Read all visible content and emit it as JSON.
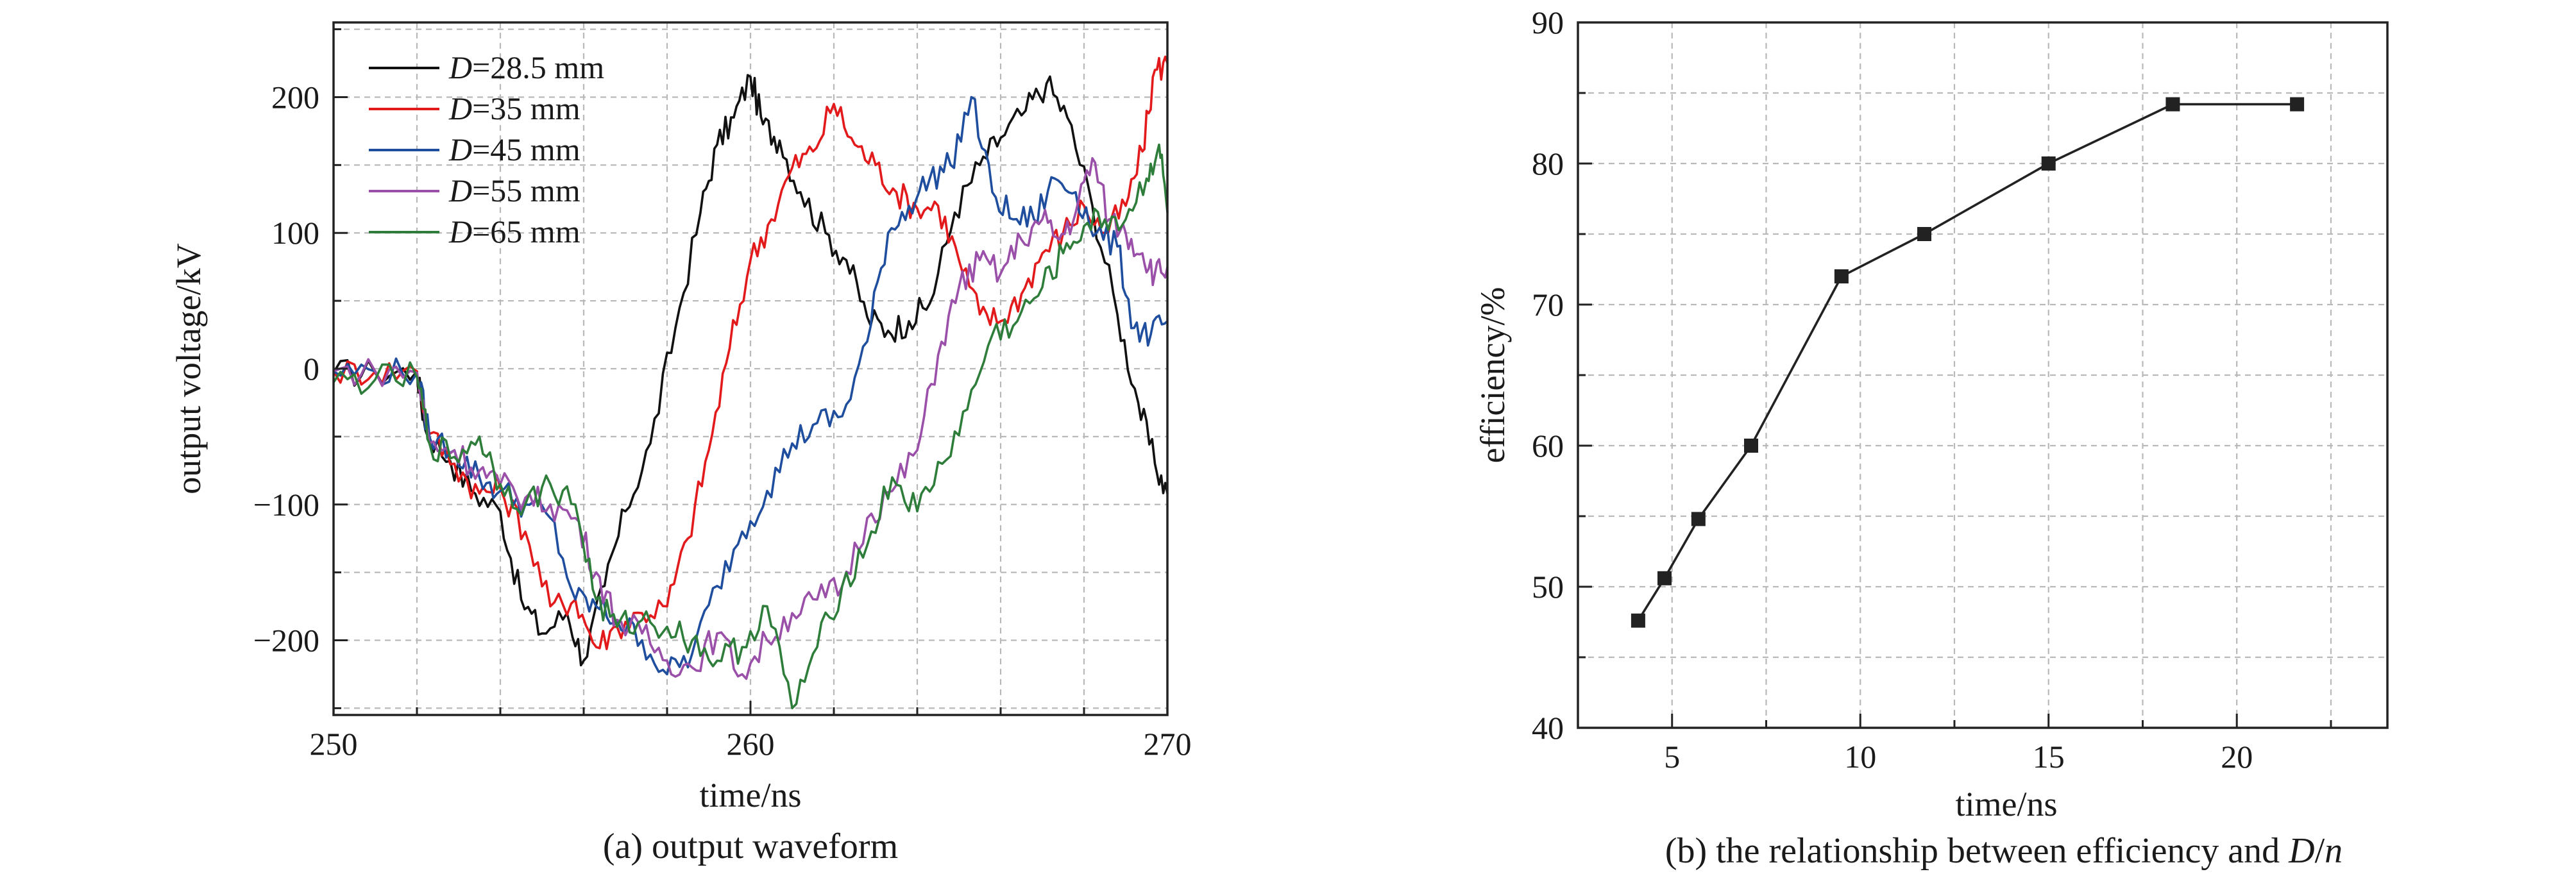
{
  "figure": {
    "captions": {
      "a": "(a) output waveform",
      "b_prefix": "(b) the relationship between efficiency and ",
      "b_italic_1": "D",
      "b_slash": "/",
      "b_italic_2": "n"
    }
  },
  "chart_data": [
    {
      "id": "a",
      "type": "line",
      "title": "",
      "xlabel": "time/ns",
      "ylabel": "output voltage/kV",
      "xlim": [
        250,
        270
      ],
      "ylim": [
        -255,
        255
      ],
      "x_ticks": [
        250,
        260,
        270
      ],
      "x_minor_ticks": [
        252,
        254,
        256,
        258,
        262,
        264,
        266,
        268
      ],
      "y_ticks": [
        -200,
        -100,
        0,
        100,
        200
      ],
      "y_minor_ticks": [
        -150,
        -50,
        50,
        150,
        250,
        -250
      ],
      "grid": true,
      "legend_position": "top-left",
      "series": [
        {
          "name_var": "D",
          "name_rest": "=28.5 mm",
          "color": "#111111",
          "x": [
            250,
            251,
            252,
            252.2,
            252.8,
            253.4,
            254,
            254.5,
            255,
            255.6,
            256,
            256.5,
            257,
            257.6,
            258.2,
            258.8,
            259.2,
            259.6,
            260,
            260.3,
            260.7,
            261.2,
            261.8,
            262.3,
            262.8,
            263.3,
            263.8,
            264.3,
            264.9,
            265.5,
            266,
            266.6,
            267.1,
            267.6,
            268.2,
            268.8,
            269.3,
            269.7,
            270
          ],
          "y": [
            -3,
            -3,
            -2,
            -45,
            -68,
            -92,
            -105,
            -170,
            -195,
            -180,
            -215,
            -160,
            -105,
            -55,
            30,
            115,
            165,
            185,
            215,
            180,
            168,
            130,
            100,
            80,
            38,
            28,
            35,
            48,
            115,
            150,
            170,
            190,
            210,
            185,
            120,
            40,
            -25,
            -70,
            -92
          ]
        },
        {
          "name_var": "D",
          "name_rest": "=35 mm",
          "color": "#e31a1c",
          "x": [
            250,
            251,
            252,
            252.3,
            252.9,
            253.5,
            254,
            254.6,
            255.2,
            255.8,
            256.3,
            256.8,
            257.4,
            258,
            258.5,
            259,
            259.5,
            260,
            260.5,
            261,
            261.5,
            262,
            262.5,
            263,
            263.5,
            264,
            264.5,
            265,
            265.5,
            266,
            266.5,
            267,
            267.5,
            268,
            268.5,
            269,
            269.4,
            269.7,
            270
          ],
          "y": [
            -2,
            -2,
            -2,
            -48,
            -70,
            -92,
            -88,
            -120,
            -175,
            -170,
            -205,
            -190,
            -180,
            -175,
            -125,
            -60,
            15,
            80,
            110,
            148,
            160,
            195,
            165,
            150,
            130,
            118,
            120,
            80,
            40,
            35,
            55,
            85,
            100,
            120,
            100,
            120,
            160,
            220,
            225
          ]
        },
        {
          "name_var": "D",
          "name_rest": "=45 mm",
          "color": "#1f4e9e",
          "x": [
            250,
            251,
            252,
            252.3,
            252.9,
            253.5,
            254,
            254.6,
            255.2,
            255.8,
            256.3,
            256.8,
            257.4,
            258,
            258.6,
            259.2,
            259.8,
            260.4,
            261,
            261.6,
            262.2,
            262.8,
            263.3,
            263.8,
            264.3,
            264.8,
            265.3,
            265.8,
            266.3,
            266.8,
            267.3,
            267.8,
            268.3,
            268.8,
            269.2,
            269.6,
            270
          ],
          "y": [
            -2,
            -2,
            -3,
            -50,
            -60,
            -80,
            -90,
            -100,
            -110,
            -170,
            -175,
            -185,
            -200,
            -225,
            -210,
            -160,
            -120,
            -90,
            -55,
            -40,
            -35,
            20,
            100,
            120,
            140,
            150,
            200,
            130,
            110,
            110,
            140,
            130,
            100,
            90,
            30,
            25,
            35
          ]
        },
        {
          "name_var": "D",
          "name_rest": "=55 mm",
          "color": "#9a4fa8",
          "x": [
            250,
            251,
            252,
            252.3,
            252.9,
            253.5,
            254,
            254.6,
            255.2,
            255.8,
            256.3,
            256.8,
            257.4,
            258,
            258.6,
            259.2,
            259.8,
            260.4,
            261,
            261.6,
            262.2,
            262.8,
            263.4,
            264,
            264.5,
            265,
            265.5,
            266,
            266.5,
            267,
            267.4,
            267.8,
            268.2,
            268.6,
            269,
            269.4,
            269.7,
            270
          ],
          "y": [
            -2,
            -2,
            -3,
            -55,
            -60,
            -75,
            -85,
            -95,
            -100,
            -110,
            -150,
            -185,
            -195,
            -215,
            -220,
            -195,
            -225,
            -200,
            -180,
            -170,
            -160,
            -110,
            -90,
            -60,
            10,
            60,
            80,
            70,
            95,
            110,
            95,
            115,
            155,
            110,
            100,
            85,
            70,
            75
          ]
        },
        {
          "name_var": "D",
          "name_rest": "=65 mm",
          "color": "#2e7d3a",
          "x": [
            250,
            251,
            252,
            252.3,
            252.9,
            253.5,
            254,
            254.6,
            255.2,
            255.8,
            256.3,
            256.8,
            257.4,
            258,
            258.6,
            259.2,
            259.8,
            260.4,
            261,
            261.6,
            262.2,
            262.8,
            263.4,
            264,
            264.6,
            265.2,
            265.8,
            266.4,
            267,
            267.5,
            268,
            268.5,
            269,
            269.5,
            269.8,
            270
          ],
          "y": [
            -10,
            -8,
            -6,
            -55,
            -65,
            -50,
            -85,
            -100,
            -85,
            -100,
            -170,
            -190,
            -185,
            -190,
            -200,
            -215,
            -205,
            -175,
            -250,
            -205,
            -160,
            -130,
            -80,
            -105,
            -70,
            -30,
            25,
            35,
            60,
            85,
            105,
            110,
            110,
            140,
            165,
            115
          ]
        }
      ]
    },
    {
      "id": "b",
      "type": "line",
      "title": "",
      "xlabel": "time/ns",
      "ylabel": "efficiency/%",
      "xlim": [
        2.5,
        24
      ],
      "ylim": [
        40,
        90
      ],
      "x_ticks": [
        5,
        10,
        15,
        20
      ],
      "x_minor_ticks": [
        2.5,
        7.5,
        12.5,
        17.5,
        22.5
      ],
      "y_ticks": [
        40,
        50,
        60,
        70,
        80,
        90
      ],
      "y_minor_ticks": [
        45,
        55,
        65,
        75,
        85
      ],
      "grid": true,
      "marker": "square",
      "color": "#222222",
      "x": [
        4.1,
        4.8,
        5.7,
        7.1,
        9.5,
        11.7,
        15,
        18.3,
        21.6
      ],
      "y": [
        47.6,
        50.6,
        54.8,
        60,
        72,
        75,
        80,
        84.2,
        84.2
      ]
    }
  ]
}
